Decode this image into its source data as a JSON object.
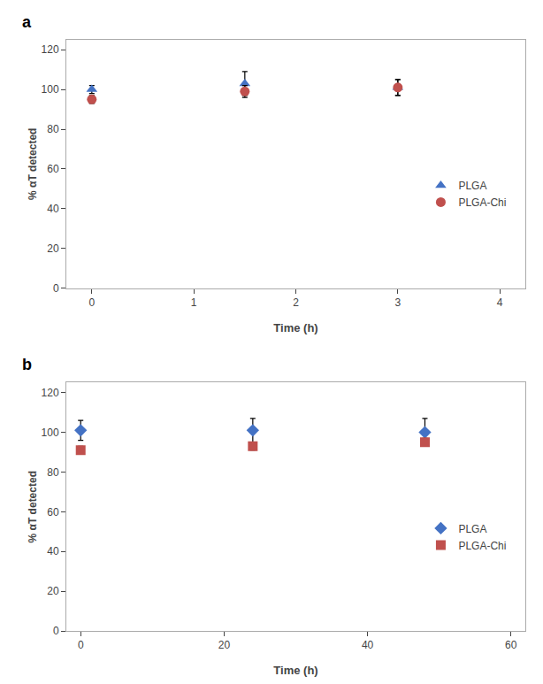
{
  "chart_data": [
    {
      "type": "scatter",
      "title": "a",
      "x_label": "Time (h)",
      "y_label": "% αT detected",
      "xlim": [
        -0.25,
        4.25
      ],
      "ylim": [
        0,
        125
      ],
      "xticks": [
        0,
        1,
        2,
        3,
        4
      ],
      "yticks": [
        0,
        20,
        40,
        60,
        80,
        100,
        120
      ],
      "grid": false,
      "legend": "right",
      "series": [
        {
          "name": "PLGA",
          "color": "#4472C4",
          "marker": "triangle-up",
          "x": [
            0,
            1.5,
            3
          ],
          "values": [
            100,
            103,
            101
          ],
          "yerr": [
            2,
            6,
            4
          ]
        },
        {
          "name": "PLGA-Chi",
          "color": "#C0504D",
          "marker": "circle",
          "x": [
            0,
            1.5,
            3
          ],
          "values": [
            95,
            99,
            101
          ],
          "yerr": [
            2,
            3,
            4
          ]
        }
      ]
    },
    {
      "type": "scatter",
      "title": "b",
      "x_label": "Time (h)",
      "y_label": "% αT detected",
      "xlim": [
        -2,
        62
      ],
      "ylim": [
        0,
        125
      ],
      "xticks": [
        0,
        20,
        40,
        60
      ],
      "yticks": [
        0,
        20,
        40,
        60,
        80,
        100,
        120
      ],
      "grid": false,
      "legend": "right",
      "series": [
        {
          "name": "PLGA",
          "color": "#4472C4",
          "marker": "diamond",
          "x": [
            0,
            24,
            48
          ],
          "values": [
            101,
            101,
            100
          ],
          "yerr": [
            5,
            6,
            7
          ]
        },
        {
          "name": "PLGA-Chi",
          "color": "#C0504D",
          "marker": "square",
          "x": [
            0,
            24,
            48
          ],
          "values": [
            91,
            93,
            95
          ],
          "yerr": [
            2,
            2,
            2
          ]
        }
      ]
    }
  ]
}
